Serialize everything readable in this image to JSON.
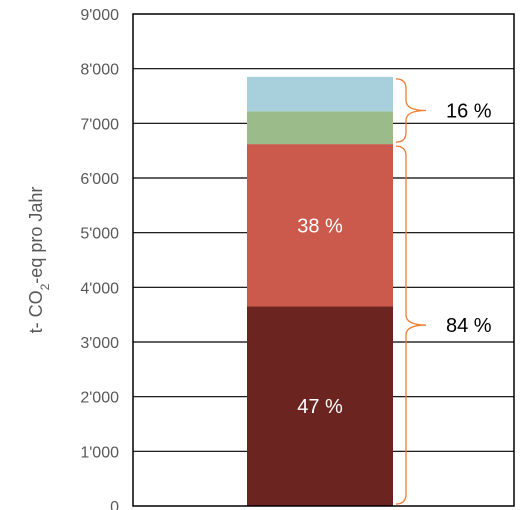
{
  "chart_data": {
    "type": "bar",
    "stacked": true,
    "categories": [
      ""
    ],
    "series": [
      {
        "value": 3650,
        "color": "#6b2420",
        "label": "47 %"
      },
      {
        "value": 2970,
        "color": "#cb5a4c",
        "label": "38 %"
      },
      {
        "value": 600,
        "color": "#9bbb8b",
        "label": ""
      },
      {
        "value": 630,
        "color": "#a8cfdc",
        "label": ""
      }
    ],
    "ylabel_parts": {
      "pre": "t- CO",
      "sub": "2",
      "post": "-eq pro Jahr"
    },
    "ylim": [
      0,
      9000
    ],
    "yticks": [
      0,
      1000,
      2000,
      3000,
      4000,
      5000,
      6000,
      7000,
      8000,
      9000
    ],
    "ytick_labels": [
      "0",
      "1'000",
      "2'000",
      "3'000",
      "4'000",
      "5'000",
      "6'000",
      "7'000",
      "8'000",
      "9'000"
    ],
    "grid": true,
    "annotations": [
      {
        "text": "16 %",
        "from_series": 2,
        "to_series": 3
      },
      {
        "text": "84 %",
        "from_series": 0,
        "to_series": 1
      }
    ],
    "brace_color": "#ed7d31"
  }
}
